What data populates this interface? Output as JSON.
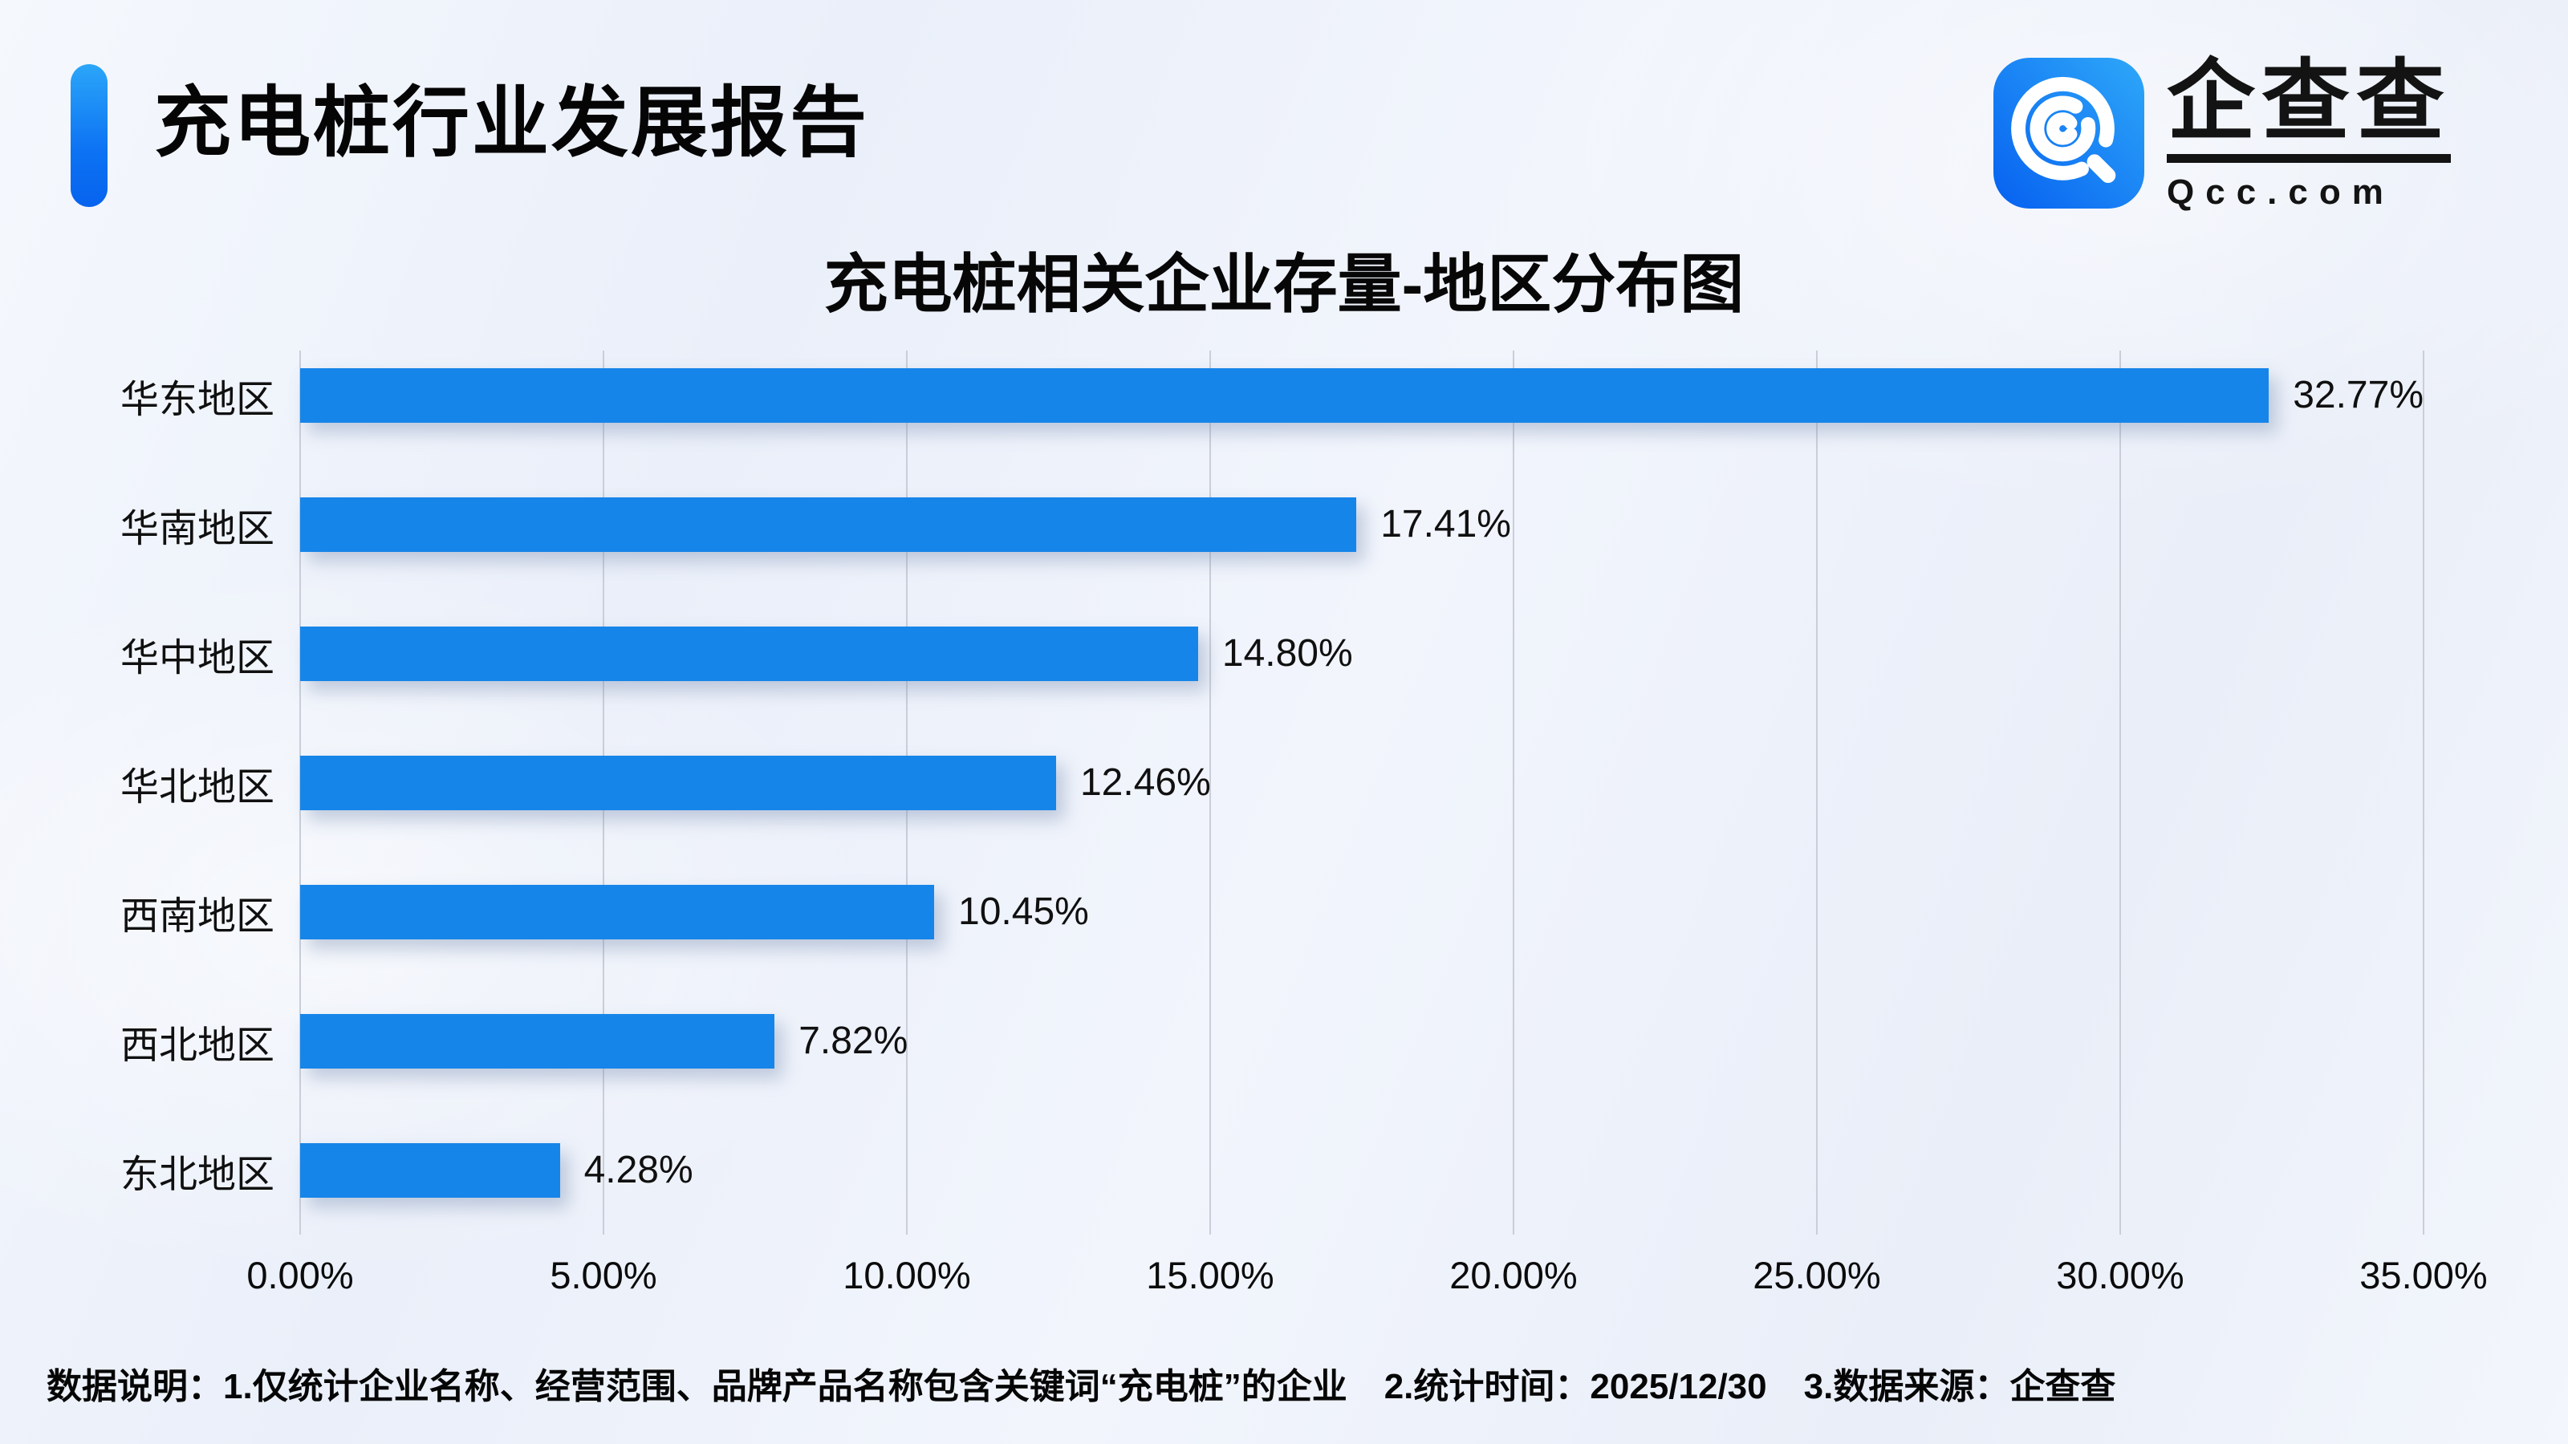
{
  "header": {
    "title": "充电桩行业发展报告",
    "logo": {
      "cn": "企查查",
      "domain": "Qcc.com"
    }
  },
  "chart_data": {
    "type": "bar",
    "orientation": "horizontal",
    "title": "充电桩相关企业存量-地区分布图",
    "categories": [
      "华东地区",
      "华南地区",
      "华中地区",
      "华北地区",
      "西南地区",
      "西北地区",
      "东北地区"
    ],
    "values": [
      32.77,
      17.41,
      14.8,
      12.46,
      10.45,
      7.82,
      4.28
    ],
    "value_labels": [
      "32.77%",
      "17.41%",
      "14.80%",
      "12.46%",
      "10.45%",
      "7.82%",
      "4.28%"
    ],
    "xlim": [
      0,
      35
    ],
    "x_tick_labels": [
      "0.00%",
      "5.00%",
      "10.00%",
      "15.00%",
      "20.00%",
      "25.00%",
      "30.00%",
      "35.00%"
    ],
    "grid": true,
    "legend": "none",
    "bar_color": "#1685e9"
  },
  "footer": {
    "notes": [
      "数据说明：1.仅统计企业名称、经营范围、品牌产品名称包含关键词“充电桩”的企业",
      "2.统计时间：2025/12/30",
      "3.数据来源：企查查"
    ]
  },
  "colors": {
    "accent_gradient_top": "#2ba6f9",
    "accent_gradient_bottom": "#0663ee",
    "bar": "#1685e9",
    "gridline": "#c9ced8",
    "background": "#edf1f9",
    "text": "#0c0c0c"
  }
}
